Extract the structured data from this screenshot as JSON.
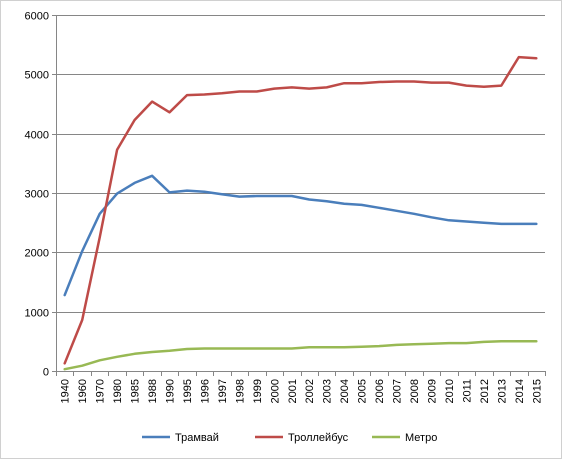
{
  "chart_data": {
    "type": "line",
    "title": "",
    "xlabel": "",
    "ylabel": "",
    "ylim": [
      0,
      6000
    ],
    "yticks": [
      0,
      1000,
      2000,
      3000,
      4000,
      5000,
      6000
    ],
    "grid": true,
    "legend_position": "bottom",
    "categories": [
      "1940",
      "1960",
      "1970",
      "1980",
      "1985",
      "1988",
      "1990",
      "1995",
      "1996",
      "1997",
      "1998",
      "1999",
      "2000",
      "2001",
      "2002",
      "2003",
      "2004",
      "2005",
      "2006",
      "2007",
      "2008",
      "2009",
      "2010",
      "2011",
      "2012",
      "2013",
      "2014",
      "2015"
    ],
    "series": [
      {
        "name": "Трамвай",
        "color": "#4a7ebb",
        "values": [
          1280,
          2020,
          2650,
          2990,
          3170,
          3290,
          3010,
          3040,
          3020,
          2980,
          2940,
          2950,
          2950,
          2950,
          2890,
          2860,
          2820,
          2800,
          2750,
          2700,
          2650,
          2590,
          2540,
          2520,
          2500,
          2480,
          2480,
          2480
        ]
      },
      {
        "name": "Троллейбус",
        "color": "#be4b48",
        "values": [
          130,
          860,
          2250,
          3730,
          4230,
          4540,
          4360,
          4650,
          4660,
          4680,
          4710,
          4710,
          4760,
          4780,
          4760,
          4780,
          4850,
          4850,
          4870,
          4880,
          4880,
          4860,
          4860,
          4810,
          4790,
          4810,
          5290,
          5270
        ]
      },
      {
        "name": "Метро",
        "color": "#98b954",
        "values": [
          30,
          90,
          180,
          240,
          290,
          320,
          340,
          370,
          380,
          380,
          380,
          380,
          380,
          380,
          400,
          400,
          400,
          410,
          420,
          440,
          450,
          460,
          470,
          470,
          490,
          500,
          500,
          500
        ]
      }
    ]
  }
}
